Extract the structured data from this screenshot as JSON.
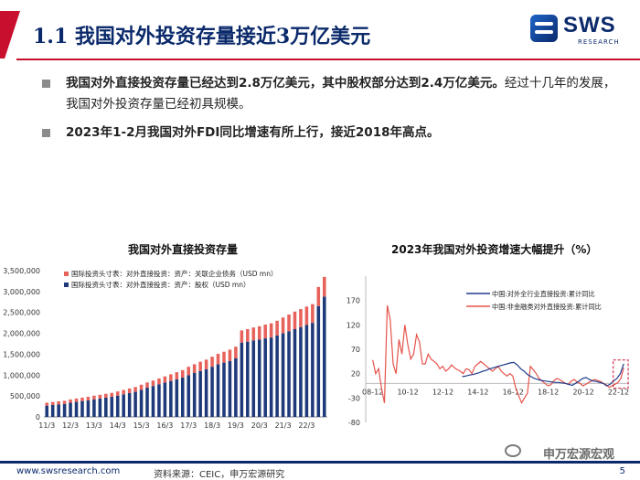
{
  "header": {
    "title": "1.1 我国对外投资存量接近3万亿美元",
    "logo_text": "SWS",
    "logo_sub": "RESEARCH"
  },
  "bullets": [
    {
      "bold": "我国对外直接投资存量已经达到2.8万亿美元，其中股权部分达到2.4万亿美元。",
      "normal": "经过十几年的发展，我国对外投资存量已经初具规模。"
    },
    {
      "bold": "2023年1-2月我国对外FDI同比增速有所上行，接近2018年高点。",
      "normal": ""
    }
  ],
  "footer": {
    "url": "www.swsresearch.com",
    "source": "资料来源：CEIC，申万宏源研究",
    "page": "5",
    "watermark": "申万宏源宏观"
  },
  "colors": {
    "navy": "#0b2a6b",
    "red": "#c8102e",
    "bar_red": "#e8625c",
    "bar_navy": "#1f3a7a"
  },
  "chart_data": [
    {
      "type": "bar",
      "title": "我国对外直接投资存量",
      "stacked": true,
      "ylim": [
        0,
        3500000
      ],
      "yticks": [
        0,
        500000,
        1000000,
        1500000,
        2000000,
        2500000,
        3000000,
        3500000
      ],
      "ytick_labels": [
        "0",
        "500,000",
        "1,000,000",
        "1,500,000",
        "2,000,000",
        "2,500,000",
        "3,000,000",
        "3,500,000"
      ],
      "xtick_labels": [
        "11/3",
        "12/3",
        "13/3",
        "14/3",
        "15/3",
        "16/3",
        "17/3",
        "18/3",
        "19/3",
        "20/3",
        "21/3",
        "22/3"
      ],
      "legend_position": "top-left",
      "series": [
        {
          "name": "国际投资头寸表：对外直接投资：资产：关联企业债务（USD mn）",
          "values": [
            70000,
            72000,
            74000,
            76000,
            78000,
            80000,
            82000,
            85000,
            88000,
            90000,
            92000,
            95000,
            100000,
            105000,
            110000,
            115000,
            120000,
            125000,
            130000,
            140000,
            150000,
            160000,
            170000,
            180000,
            200000,
            210000,
            220000,
            230000,
            240000,
            250000,
            260000,
            270000,
            280000,
            290000,
            300000,
            310000,
            320000,
            330000,
            340000,
            350000,
            380000,
            400000,
            420000,
            430000,
            440000,
            450000,
            460000,
            470000
          ]
        },
        {
          "name": "国际投资头寸表：对外直接投资：资产：股权（USD mn）",
          "values": [
            270000,
            285000,
            300000,
            310000,
            340000,
            360000,
            380000,
            395000,
            420000,
            440000,
            460000,
            480000,
            510000,
            540000,
            570000,
            600000,
            650000,
            700000,
            740000,
            780000,
            820000,
            860000,
            900000,
            940000,
            1000000,
            1050000,
            1100000,
            1140000,
            1200000,
            1260000,
            1300000,
            1340000,
            1400000,
            1780000,
            1800000,
            1830000,
            1850000,
            1880000,
            1900000,
            1950000,
            2000000,
            2050000,
            2100000,
            2150000,
            2200000,
            2250000,
            2650000,
            2880000
          ]
        }
      ]
    },
    {
      "type": "line",
      "title": "2023年我国对外投资增速大幅提升（%）",
      "ylim": [
        -80,
        220
      ],
      "yticks": [
        -80,
        -30,
        20,
        70,
        120,
        170
      ],
      "xtick_labels": [
        "08-12",
        "10-12",
        "12-12",
        "14-12",
        "16-12",
        "18-12",
        "20-12",
        "22-12"
      ],
      "legend_position": "top-right",
      "series": [
        {
          "name": "中国:对外全行业直接投资:累计同比",
          "x_start": 2014.0,
          "x_end": 2023.2,
          "values": [
            14,
            15,
            17,
            18,
            20,
            22,
            25,
            27,
            30,
            32,
            34,
            36,
            38,
            40,
            42,
            43,
            38,
            30,
            25,
            18,
            14,
            10,
            8,
            6,
            5,
            4,
            3,
            2,
            2,
            1,
            0,
            -2,
            -4,
            0,
            5,
            10,
            12,
            8,
            5,
            4,
            2,
            0,
            -5,
            -2,
            5,
            10,
            20,
            40
          ]
        },
        {
          "name": "中国:非金融类对外直接投资:累计同比",
          "x_start": 2008.9,
          "x_end": 2023.2,
          "values": [
            48,
            20,
            30,
            -10,
            -40,
            160,
            130,
            40,
            20,
            90,
            60,
            120,
            80,
            50,
            60,
            100,
            85,
            40,
            40,
            60,
            50,
            45,
            40,
            30,
            35,
            25,
            30,
            38,
            32,
            28,
            25,
            20,
            30,
            28,
            20,
            35,
            40,
            45,
            40,
            35,
            30,
            25,
            30,
            35,
            25,
            20,
            15,
            20,
            15,
            -10,
            -25,
            -40,
            -30,
            -20,
            35,
            28,
            20,
            10,
            5,
            0,
            -5,
            -3,
            5,
            10,
            8,
            4,
            0,
            -2,
            5,
            8,
            3,
            0,
            -5,
            -2,
            2,
            5,
            8,
            6,
            4,
            0,
            -3,
            -8,
            -5,
            -2,
            2,
            10,
            32
          ]
        }
      ]
    }
  ]
}
